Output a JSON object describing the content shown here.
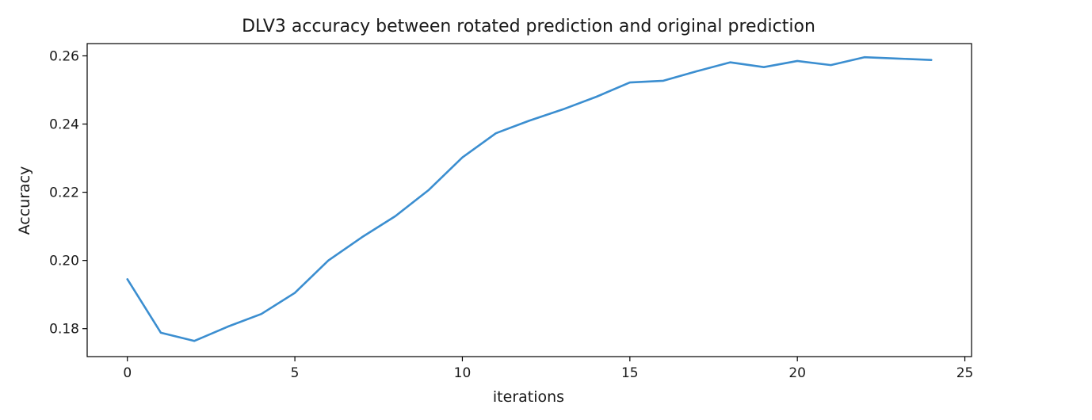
{
  "chart_data": {
    "type": "line",
    "title": "DLV3 accuracy between rotated prediction and original prediction",
    "xlabel": "iterations",
    "ylabel": "Accuracy",
    "xlim": [
      -1.2,
      25.2
    ],
    "ylim": [
      0.1718,
      0.2636
    ],
    "xticks": [
      0,
      5,
      10,
      15,
      20,
      25
    ],
    "xtick_labels": [
      "0",
      "5",
      "10",
      "15",
      "20",
      "25"
    ],
    "yticks": [
      0.18,
      0.2,
      0.22,
      0.24,
      0.26
    ],
    "ytick_labels": [
      "0.18",
      "0.20",
      "0.22",
      "0.24",
      "0.26"
    ],
    "grid": false,
    "legend": "none",
    "line_color": "#3b8ed0",
    "x": [
      0,
      1,
      2,
      3,
      4,
      5,
      6,
      7,
      8,
      9,
      10,
      11,
      12,
      13,
      14,
      15,
      16,
      17,
      18,
      19,
      20,
      21,
      22,
      23,
      24
    ],
    "series": [
      {
        "values": [
          0.1945,
          0.1788,
          0.1764,
          0.1806,
          0.1843,
          0.1905,
          0.2,
          0.2068,
          0.213,
          0.2207,
          0.2302,
          0.2373,
          0.241,
          0.2443,
          0.248,
          0.2522,
          0.2527,
          0.2555,
          0.2581,
          0.2567,
          0.2585,
          0.2573,
          0.2596,
          0.2592,
          0.2588
        ]
      }
    ]
  }
}
